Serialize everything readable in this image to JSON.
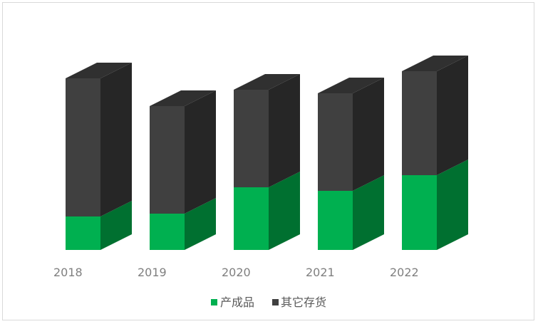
{
  "chart_data": {
    "type": "bar",
    "stacked": true,
    "three_d": true,
    "categories": [
      "2018",
      "2019",
      "2020",
      "2021",
      "2022"
    ],
    "series": [
      {
        "name": "产成品",
        "values": [
          47,
          51,
          88,
          83,
          105
        ]
      },
      {
        "name": "其它存货",
        "values": [
          194,
          151,
          137,
          137,
          146
        ]
      }
    ],
    "ylim": [
      0,
      260
    ],
    "grid": false,
    "legend": "bottom",
    "colors": {
      "产成品": {
        "front": "#00b050",
        "side": "#007030",
        "top": "#00a048"
      },
      "其它存货": {
        "front": "#404040",
        "side": "#262626",
        "top": "#303030"
      }
    }
  }
}
